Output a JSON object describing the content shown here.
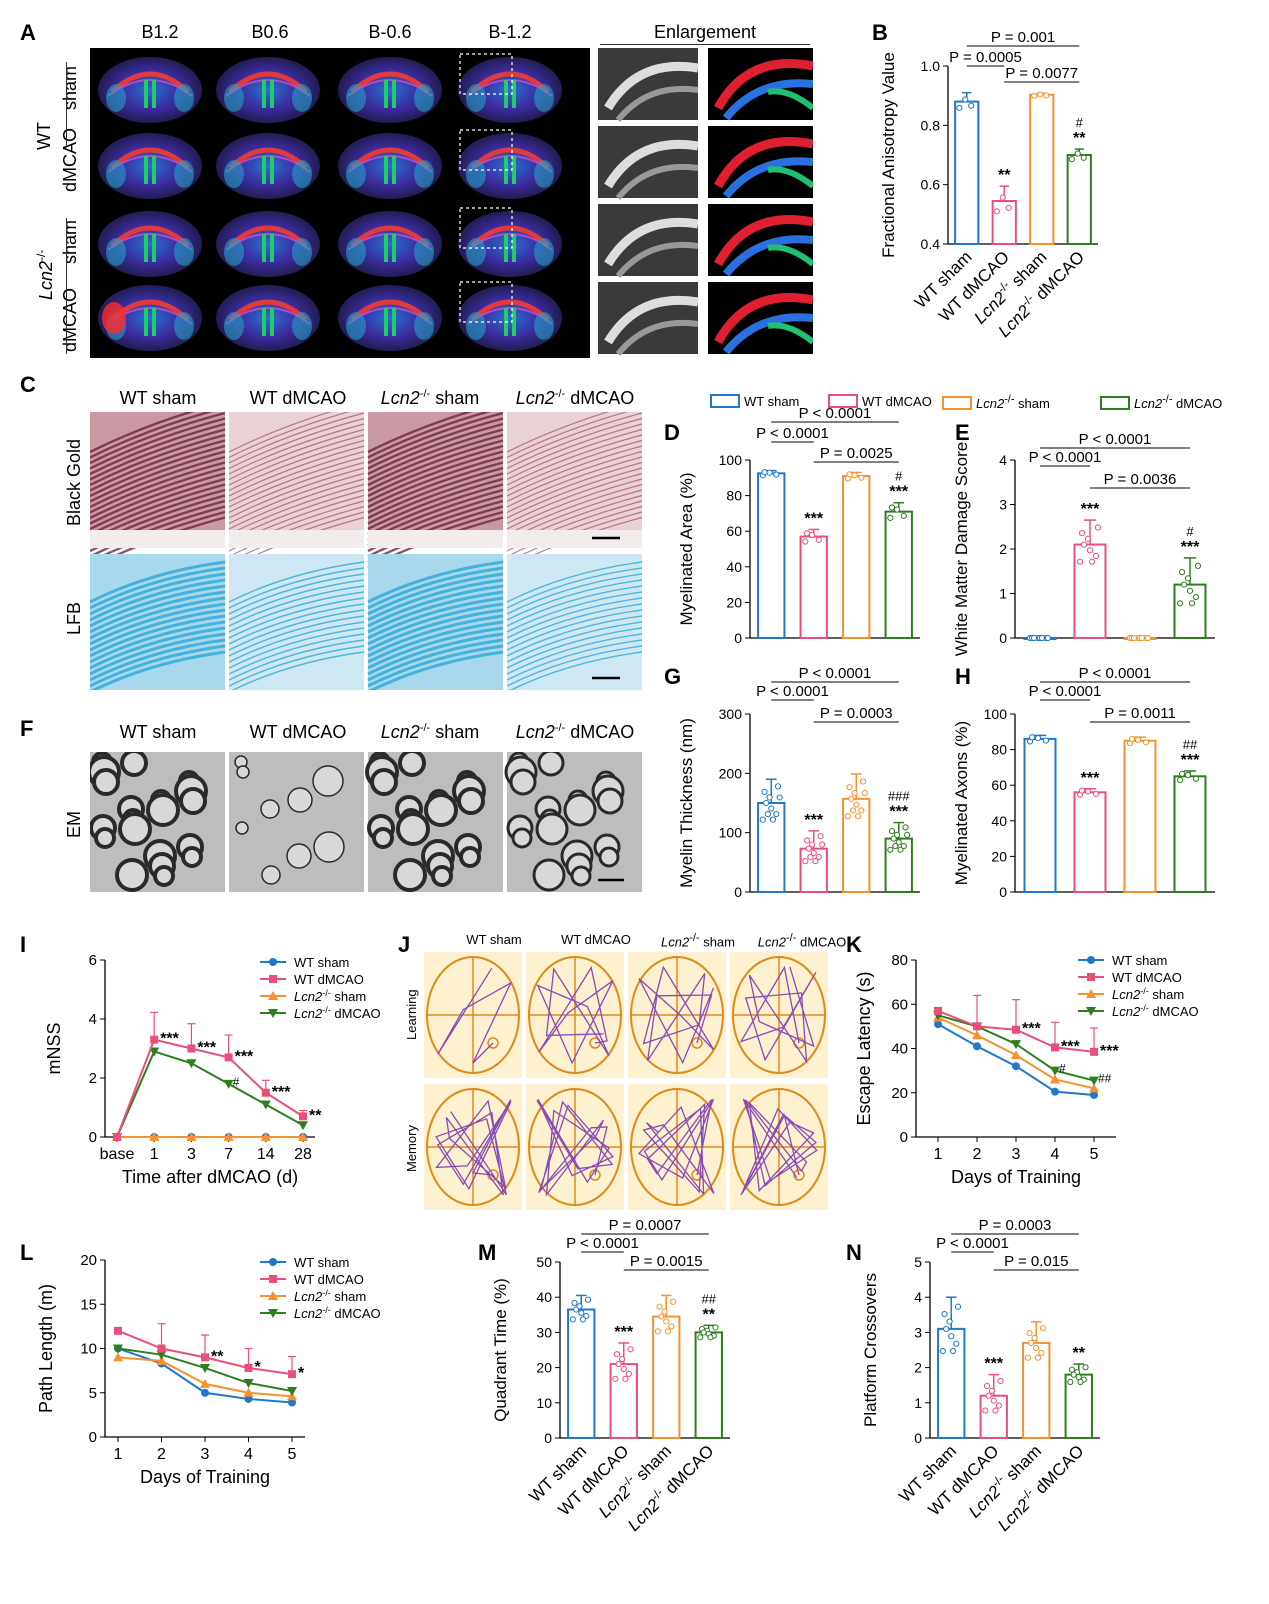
{
  "panels": {
    "A": "A",
    "B": "B",
    "C": "C",
    "D": "D",
    "E": "E",
    "F": "F",
    "G": "G",
    "H": "H",
    "I": "I",
    "J": "J",
    "K": "K",
    "L": "L",
    "M": "M",
    "N": "N"
  },
  "a": {
    "cols": [
      "B1.2",
      "B0.6",
      "B-0.6",
      "B-1.2"
    ],
    "enlargement": "Enlargement",
    "wt": "WT",
    "lcn": "Lcn2",
    "sup": "-/-",
    "sham": "sham",
    "dmcao": "dMCAO"
  },
  "groups": [
    "WT sham",
    "WT dMCAO",
    "Lcn2-/- sham",
    "Lcn2-/- dMCAO"
  ],
  "groups_rot": [
    {
      "pre": "WT",
      "post": " sham"
    },
    {
      "pre": "WT",
      "post": " dMCAO"
    },
    {
      "pre": "Lcn2",
      "sup": "-/-",
      "post": " sham"
    },
    {
      "pre": "Lcn2",
      "sup": "-/-",
      "post": " dMCAO"
    }
  ],
  "c": {
    "headers": [
      {
        "pre": "WT sham"
      },
      {
        "pre": "WT dMCAO"
      },
      {
        "pre": "Lcn2",
        "sup": "-/-",
        "post": " sham"
      },
      {
        "pre": "Lcn2",
        "sup": "-/-",
        "post": " dMCAO"
      }
    ],
    "row1": "Black Gold",
    "row2": "LFB"
  },
  "f": {
    "row": "EM"
  },
  "legend": [
    {
      "pre": "WT sham"
    },
    {
      "pre": "WT dMCAO"
    },
    {
      "pre": "Lcn2",
      "sup": "-/-",
      "post": " sham"
    },
    {
      "pre": "Lcn2",
      "sup": "-/-",
      "post": " dMCAO"
    }
  ],
  "j": {
    "headers": [
      {
        "pre": "WT sham"
      },
      {
        "pre": "WT dMCAO"
      },
      {
        "pre": "Lcn2",
        "sup": "-/-",
        "post": " sham"
      },
      {
        "pre": "Lcn2",
        "sup": "-/-",
        "post": " dMCAO"
      }
    ],
    "row1": "Learning",
    "row2": "Memory"
  },
  "colors": {
    "wtsham": "#1f78c8",
    "wtdmcao": "#e8507a",
    "lcnsham": "#f5922f",
    "lcndmcao": "#2e7d1e"
  },
  "chart_data": [
    {
      "id": "B",
      "type": "bar",
      "ylabel": "Fractional Anisotropy Value",
      "ylim": [
        0.4,
        1.0
      ],
      "yticks": [
        "0.4",
        "0.6",
        "0.8",
        "1.0"
      ],
      "categories": [
        "WT sham",
        "WT dMCAO",
        "Lcn2-/- sham",
        "Lcn2-/- dMCAO"
      ],
      "values": [
        0.88,
        0.545,
        0.903,
        0.7
      ],
      "errors": [
        0.03,
        0.05,
        0.005,
        0.02
      ],
      "sig": [
        "",
        "**",
        "",
        "**"
      ],
      "sig2": [
        "",
        "",
        "",
        "#"
      ],
      "brackets": [
        "P = 0.001",
        "P = 0.0005",
        "P = 0.0077"
      ]
    },
    {
      "id": "D",
      "type": "bar",
      "ylabel": "Myelinated Area (%)",
      "ylim": [
        0,
        100
      ],
      "yticks": [
        "0",
        "20",
        "40",
        "60",
        "80",
        "100"
      ],
      "values": [
        92.5,
        57,
        91,
        71
      ],
      "errors": [
        1.5,
        4,
        2,
        5
      ],
      "sig": [
        "",
        "***",
        "",
        "***"
      ],
      "sig2": [
        "",
        "",
        "",
        "#"
      ],
      "brackets": [
        "P < 0.0001",
        "P < 0.0001",
        "P = 0.0025"
      ]
    },
    {
      "id": "E",
      "type": "bar",
      "ylabel": "White Matter Damage Score",
      "ylim": [
        0,
        4
      ],
      "yticks": [
        "0",
        "1",
        "2",
        "3",
        "4"
      ],
      "values": [
        0,
        2.1,
        0,
        1.2
      ],
      "errors": [
        0,
        0.55,
        0,
        0.6
      ],
      "sig": [
        "",
        "***",
        "",
        "***"
      ],
      "sig2": [
        "",
        "",
        "",
        "#"
      ],
      "brackets": [
        "P < 0.0001",
        "P < 0.0001",
        "P = 0.0036"
      ]
    },
    {
      "id": "G",
      "type": "bar",
      "ylabel": "Myelin Thickness (nm)",
      "ylim": [
        0,
        300
      ],
      "yticks": [
        "0",
        "100",
        "200",
        "300"
      ],
      "values": [
        150,
        73,
        157,
        90
      ],
      "errors": [
        40,
        30,
        42,
        27
      ],
      "sig": [
        "",
        "***",
        "",
        "***"
      ],
      "sig2": [
        "",
        "",
        "",
        "###"
      ],
      "brackets": [
        "P < 0.0001",
        "P < 0.0001",
        "P = 0.0003"
      ]
    },
    {
      "id": "H",
      "type": "bar",
      "ylabel": "Myelinated Axons (%)",
      "ylim": [
        0,
        100
      ],
      "yticks": [
        "0",
        "20",
        "40",
        "60",
        "80",
        "100"
      ],
      "values": [
        86,
        56,
        85,
        65
      ],
      "errors": [
        2,
        2,
        2,
        3
      ],
      "sig": [
        "",
        "***",
        "",
        "***"
      ],
      "sig2": [
        "",
        "",
        "",
        "##"
      ],
      "brackets": [
        "P < 0.0001",
        "P < 0.0001",
        "P = 0.0011"
      ]
    },
    {
      "id": "I",
      "type": "line",
      "xlabel": "Time after dMCAO (d)",
      "ylabel": "mNSS",
      "ylim": [
        0,
        6
      ],
      "yticks": [
        "0",
        "2",
        "4",
        "6"
      ],
      "categories": [
        "base",
        "1",
        "3",
        "7",
        "14",
        "28"
      ],
      "series": [
        {
          "name": "WT sham",
          "values": [
            0,
            0,
            0,
            0,
            0,
            0
          ]
        },
        {
          "name": "WT dMCAO",
          "values": [
            0,
            3.3,
            3.0,
            2.7,
            1.5,
            0.7
          ]
        },
        {
          "name": "Lcn2-/- sham",
          "values": [
            0,
            0,
            0,
            0,
            0,
            0
          ]
        },
        {
          "name": "Lcn2-/- dMCAO",
          "values": [
            0,
            2.9,
            2.5,
            1.8,
            1.1,
            0.4
          ]
        }
      ],
      "sig": [
        "",
        "***",
        "***",
        "***",
        "***",
        "**"
      ],
      "sig2": [
        "",
        "",
        "",
        "#",
        "",
        ""
      ]
    },
    {
      "id": "K",
      "type": "line",
      "xlabel": "Days of Training",
      "ylabel": "Escape Latency (s)",
      "ylim": [
        0,
        80
      ],
      "yticks": [
        "0",
        "20",
        "40",
        "60",
        "80"
      ],
      "categories": [
        "1",
        "2",
        "3",
        "4",
        "5"
      ],
      "series": [
        {
          "name": "WT sham",
          "values": [
            51,
            41,
            32,
            20.5,
            19
          ]
        },
        {
          "name": "WT dMCAO",
          "values": [
            57,
            50,
            48.5,
            40.5,
            38.5
          ]
        },
        {
          "name": "Lcn2-/- sham",
          "values": [
            54,
            46,
            37,
            26,
            22
          ]
        },
        {
          "name": "Lcn2-/- dMCAO",
          "values": [
            55,
            50,
            42,
            30,
            25.5
          ]
        }
      ],
      "sig": [
        "",
        "",
        "***",
        "***",
        "***"
      ],
      "sig2": [
        "",
        "",
        "",
        "#",
        "##"
      ]
    },
    {
      "id": "L",
      "type": "line",
      "xlabel": "Days of Training",
      "ylabel": "Path Length (m)",
      "ylim": [
        0,
        20
      ],
      "yticks": [
        "0",
        "5",
        "10",
        "15",
        "20"
      ],
      "categories": [
        "1",
        "2",
        "3",
        "4",
        "5"
      ],
      "series": [
        {
          "name": "WT sham",
          "values": [
            10,
            8.3,
            5,
            4.3,
            3.9
          ]
        },
        {
          "name": "WT dMCAO",
          "values": [
            12,
            10,
            9,
            7.8,
            7.1
          ]
        },
        {
          "name": "Lcn2-/- sham",
          "values": [
            9,
            8.6,
            6,
            5,
            4.6
          ]
        },
        {
          "name": "Lcn2-/- dMCAO",
          "values": [
            10,
            9.3,
            7.8,
            6.1,
            5.2
          ]
        }
      ],
      "sig": [
        "",
        "",
        "**",
        "*",
        "*"
      ],
      "sig2": [
        "",
        "",
        "",
        "",
        ""
      ]
    },
    {
      "id": "M",
      "type": "bar",
      "ylabel": "Quadrant Time (%)",
      "ylim": [
        0,
        50
      ],
      "yticks": [
        "0",
        "10",
        "20",
        "30",
        "40",
        "50"
      ],
      "values": [
        36.5,
        21,
        34.5,
        30
      ],
      "errors": [
        4,
        6,
        6,
        2
      ],
      "sig": [
        "",
        "***",
        "",
        "**"
      ],
      "sig2": [
        "",
        "",
        "",
        "##"
      ],
      "brackets": [
        "P = 0.0007",
        "P < 0.0001",
        "P = 0.0015"
      ]
    },
    {
      "id": "N",
      "type": "bar",
      "ylabel": "Platform Crossovers",
      "ylim": [
        0,
        5
      ],
      "yticks": [
        "0",
        "1",
        "2",
        "3",
        "4",
        "5"
      ],
      "values": [
        3.1,
        1.2,
        2.7,
        1.8
      ],
      "errors": [
        0.9,
        0.6,
        0.6,
        0.3
      ],
      "sig": [
        "",
        "***",
        "",
        "**"
      ],
      "sig2": [
        "",
        "",
        "",
        ""
      ],
      "brackets": [
        "P = 0.0003",
        "P < 0.0001",
        "P = 0.015"
      ]
    }
  ]
}
